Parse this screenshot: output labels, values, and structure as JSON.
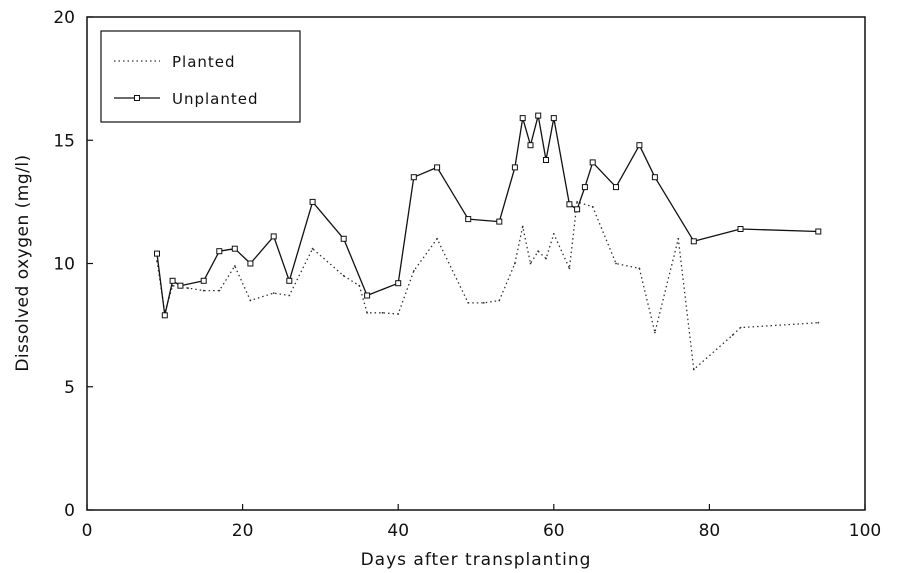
{
  "chart_data": {
    "type": "line",
    "title": "",
    "xlabel": "Days after transplanting",
    "ylabel": "Dissolved oxygen (mg/l)",
    "xlim": [
      0,
      100
    ],
    "ylim": [
      0,
      20
    ],
    "xticks": [
      0,
      20,
      40,
      60,
      80,
      100
    ],
    "yticks": [
      0,
      5,
      10,
      15,
      20
    ],
    "grid": false,
    "legend_position": "top-left",
    "series": [
      {
        "name": "Planted",
        "style": "dotted",
        "color": "#333333",
        "marker": "none",
        "points": [
          [
            9,
            10.1
          ],
          [
            10,
            8.0
          ],
          [
            11,
            9.1
          ],
          [
            13,
            9.0
          ],
          [
            15,
            8.9
          ],
          [
            17,
            8.9
          ],
          [
            19,
            9.9
          ],
          [
            21,
            8.5
          ],
          [
            24,
            8.8
          ],
          [
            26,
            8.7
          ],
          [
            29,
            10.6
          ],
          [
            33,
            9.5
          ],
          [
            35,
            9.1
          ],
          [
            36,
            8.0
          ],
          [
            38,
            8.0
          ],
          [
            40,
            7.95
          ],
          [
            42,
            9.7
          ],
          [
            45,
            11.0
          ],
          [
            49,
            8.4
          ],
          [
            51,
            8.4
          ],
          [
            53,
            8.5
          ],
          [
            55,
            10.0
          ],
          [
            56,
            11.5
          ],
          [
            57,
            10.0
          ],
          [
            58,
            10.5
          ],
          [
            59,
            10.2
          ],
          [
            60,
            11.2
          ],
          [
            62,
            9.8
          ],
          [
            63,
            12.5
          ],
          [
            65,
            12.3
          ],
          [
            68,
            10.0
          ],
          [
            71,
            9.8
          ],
          [
            73,
            7.2
          ],
          [
            76,
            11.0
          ],
          [
            78,
            5.7
          ],
          [
            83,
            7.1
          ],
          [
            84,
            7.4
          ],
          [
            94,
            7.6
          ]
        ]
      },
      {
        "name": "Unplanted",
        "style": "solid",
        "color": "#111111",
        "marker": "square",
        "points": [
          [
            9,
            10.4
          ],
          [
            10,
            7.9
          ],
          [
            11,
            9.3
          ],
          [
            12,
            9.1
          ],
          [
            15,
            9.3
          ],
          [
            17,
            10.5
          ],
          [
            19,
            10.6
          ],
          [
            21,
            10.0
          ],
          [
            24,
            11.1
          ],
          [
            26,
            9.3
          ],
          [
            29,
            12.5
          ],
          [
            33,
            11.0
          ],
          [
            36,
            8.7
          ],
          [
            40,
            9.2
          ],
          [
            42,
            13.5
          ],
          [
            45,
            13.9
          ],
          [
            49,
            11.8
          ],
          [
            53,
            11.7
          ],
          [
            55,
            13.9
          ],
          [
            56,
            15.9
          ],
          [
            57,
            14.8
          ],
          [
            58,
            16.0
          ],
          [
            59,
            14.2
          ],
          [
            60,
            15.9
          ],
          [
            62,
            12.4
          ],
          [
            63,
            12.2
          ],
          [
            64,
            13.1
          ],
          [
            65,
            14.1
          ],
          [
            68,
            13.1
          ],
          [
            71,
            14.8
          ],
          [
            73,
            13.5
          ],
          [
            78,
            10.9
          ],
          [
            84,
            11.4
          ],
          [
            94,
            11.3
          ]
        ]
      }
    ]
  }
}
